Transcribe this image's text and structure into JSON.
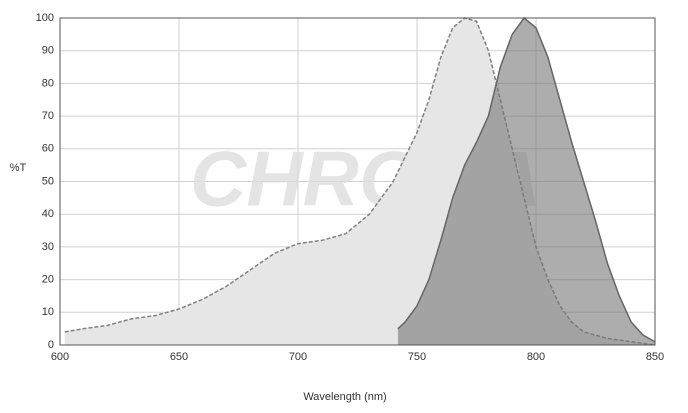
{
  "chart_data": {
    "type": "area",
    "x_label": "Wavelength (nm)",
    "y_label": "%T",
    "watermark": "CHROMA",
    "xlim": [
      600,
      850
    ],
    "ylim": [
      0,
      100
    ],
    "xticks": [
      600,
      650,
      700,
      750,
      800,
      850
    ],
    "yticks": [
      0,
      10,
      20,
      30,
      40,
      50,
      60,
      70,
      80,
      90,
      100
    ],
    "grid": true,
    "series": [
      {
        "color": "#e6e6e6",
        "line_color": "#808080",
        "dashed": true,
        "x": [
          602,
          610,
          620,
          630,
          640,
          650,
          660,
          670,
          680,
          690,
          700,
          710,
          720,
          730,
          740,
          750,
          755,
          760,
          765,
          770,
          775,
          780,
          785,
          790,
          795,
          800,
          805,
          810,
          815,
          820,
          830,
          840,
          850
        ],
        "values": [
          4,
          5,
          6,
          8,
          9,
          11,
          14,
          18,
          23,
          28,
          31,
          32,
          34,
          40,
          50,
          65,
          75,
          88,
          97,
          100,
          99,
          90,
          75,
          60,
          45,
          30,
          20,
          12,
          7,
          4,
          2,
          1,
          0
        ]
      },
      {
        "color": "#777777",
        "line_color": "#666666",
        "dashed": false,
        "x": [
          742,
          745,
          750,
          755,
          760,
          765,
          770,
          775,
          780,
          785,
          790,
          795,
          800,
          805,
          810,
          815,
          820,
          825,
          830,
          835,
          840,
          845,
          850
        ],
        "values": [
          5,
          7,
          12,
          20,
          32,
          45,
          55,
          62,
          70,
          85,
          95,
          100,
          97,
          88,
          75,
          62,
          50,
          38,
          25,
          15,
          7,
          3,
          1
        ]
      }
    ]
  }
}
